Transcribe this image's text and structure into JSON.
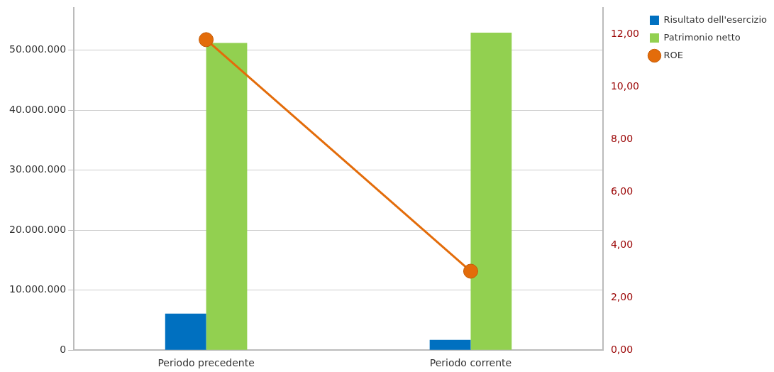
{
  "chart_data": {
    "type": "bar",
    "categories": [
      "Periodo precedente",
      "Periodo corrente"
    ],
    "series": [
      {
        "name": "Risultato dell'esercizio",
        "color": "#0070c0",
        "values": [
          6100000,
          1700000
        ]
      },
      {
        "name": "Patrimonio netto",
        "color": "#92d050",
        "values": [
          51200000,
          52900000
        ]
      },
      {
        "name": "ROE",
        "type": "line",
        "axis": "y2",
        "color": "#e36c0a",
        "values": [
          11.8,
          3.0
        ],
        "marker": "circle"
      }
    ],
    "ylim": [
      0,
      57000000
    ],
    "yticks": [
      {
        "value": 0,
        "label": "0"
      },
      {
        "value": 10000000,
        "label": "10.000.000"
      },
      {
        "value": 20000000,
        "label": "20.000.000"
      },
      {
        "value": 30000000,
        "label": "30.000.000"
      },
      {
        "value": 40000000,
        "label": "40.000.000"
      },
      {
        "value": 50000000,
        "label": "50.000.000"
      }
    ],
    "y2lim": [
      0,
      13
    ],
    "y2ticks": [
      {
        "value": 0,
        "label": "0,00"
      },
      {
        "value": 2,
        "label": "2,00"
      },
      {
        "value": 4,
        "label": "4,00"
      },
      {
        "value": 6,
        "label": "6,00"
      },
      {
        "value": 8,
        "label": "8,00"
      },
      {
        "value": 10,
        "label": "10,00"
      },
      {
        "value": 12,
        "label": "12,00"
      }
    ],
    "grid": "y",
    "legend": "top right"
  }
}
